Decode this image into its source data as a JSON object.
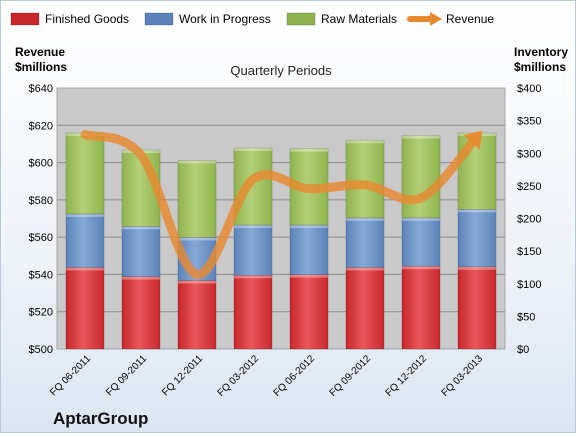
{
  "chart_data": {
    "type": "bar",
    "stacked": true,
    "title": "Quarterly Periods",
    "company": "AptarGroup",
    "ylabel_left": [
      "Revenue",
      "$millions"
    ],
    "ylabel_right": [
      "Inventory",
      "$millions"
    ],
    "ylim_left": [
      500,
      640
    ],
    "ylim_right": [
      0,
      400
    ],
    "left_ticks": [
      "$640",
      "$620",
      "$600",
      "$580",
      "$560",
      "$540",
      "$520",
      "$500"
    ],
    "right_ticks": [
      "$400",
      "$350",
      "$300",
      "$250",
      "$200",
      "$150",
      "$100",
      "$50",
      "$0"
    ],
    "grid": true,
    "legend_position": "top",
    "categories": [
      "FQ 06-2011",
      "FQ 09-2011",
      "FQ 12-2011",
      "FQ 03-2012",
      "FQ 06-2012",
      "FQ 09-2012",
      "FQ 12-2012",
      "FQ 03-2013"
    ],
    "series": [
      {
        "name": "Finished Goods",
        "color": "#c8272c",
        "axis": "right",
        "values": [
          125,
          111,
          105,
          113,
          114,
          125,
          127,
          126
        ]
      },
      {
        "name": "Work in Progress",
        "color": "#5b83b9",
        "axis": "right",
        "values": [
          82,
          77,
          66,
          77,
          76,
          76,
          74,
          88
        ]
      },
      {
        "name": "Raw Materials",
        "color": "#8fb34e",
        "axis": "right",
        "values": [
          124,
          117,
          118,
          118,
          117,
          119,
          126,
          117
        ]
      }
    ],
    "line": {
      "name": "Revenue",
      "color": "#e8892f",
      "axis": "left",
      "values": [
        615,
        604,
        540,
        591,
        586,
        588,
        581,
        614
      ]
    }
  }
}
